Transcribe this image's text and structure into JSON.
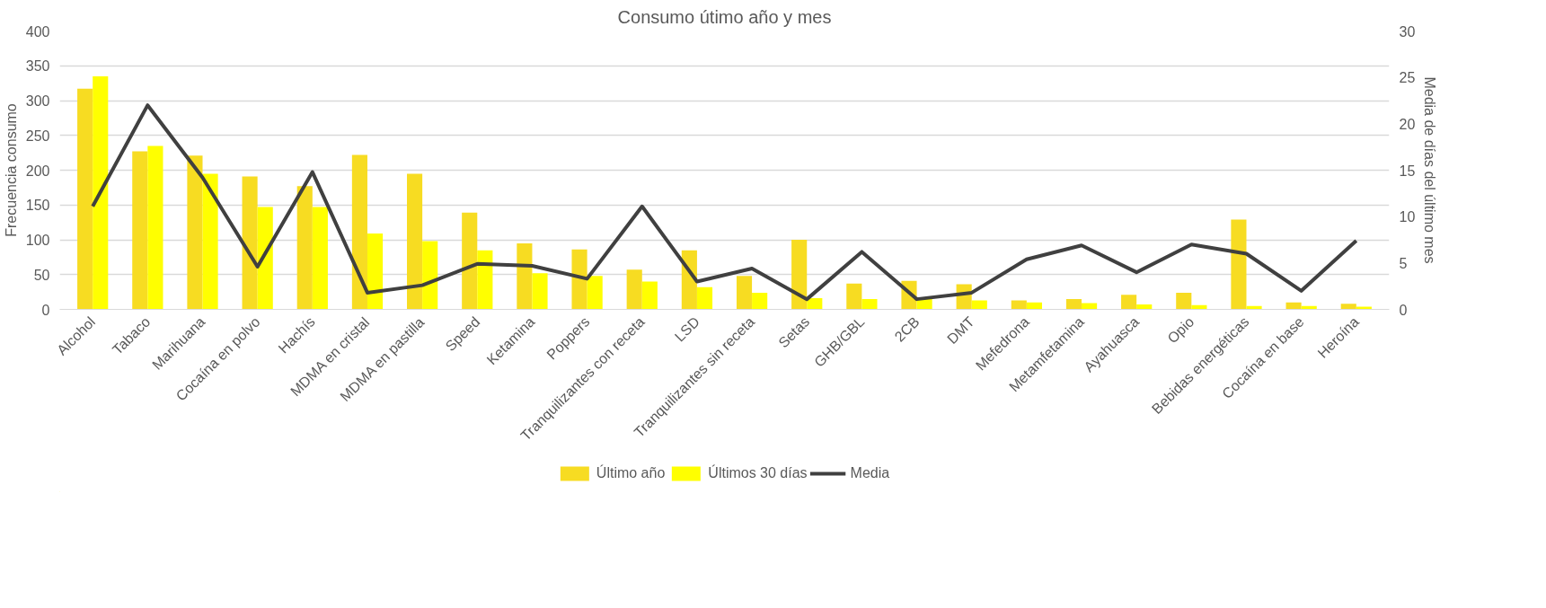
{
  "chart_data": {
    "type": "bar",
    "title": "Consumo útimo año y mes",
    "ylabel": "Frecuencia consumo",
    "y2label": "Media de días del último mes",
    "categories": [
      "Alcohol",
      "Tabaco",
      "Marihuana",
      "Cocaína en polvo",
      "Hachís",
      "MDMA en cristal",
      "MDMA en pastilla",
      "Speed",
      "Ketamina",
      "Poppers",
      "Tranquilizantes con receta",
      "LSD",
      "Tranquilizantes sin receta",
      "Setas",
      "GHB/GBL",
      "2CB",
      "DMT",
      "Mefedrona",
      "Metamfetamina",
      "Ayahuasca",
      "Opio",
      "Bebidas energéticas",
      "Cocaína en base",
      "Heroína"
    ],
    "series": [
      {
        "name": "Último año",
        "color": "#f7dc22",
        "values": [
          317,
          227,
          221,
          191,
          177,
          222,
          195,
          139,
          95,
          86,
          57,
          85,
          48,
          100,
          37,
          41,
          36,
          13,
          15,
          21,
          24,
          129,
          10,
          8
        ]
      },
      {
        "name": "Últimos 30 días",
        "color": "#ffff00",
        "values": [
          335,
          235,
          195,
          147,
          147,
          109,
          98,
          85,
          52,
          48,
          40,
          32,
          24,
          16,
          15,
          15,
          13,
          10,
          9,
          7,
          6,
          5,
          5,
          4
        ]
      },
      {
        "name": "Media",
        "type": "line",
        "axis": "y2",
        "color": "#404040",
        "values": [
          11.1,
          22.0,
          14.2,
          4.6,
          14.8,
          1.8,
          2.6,
          4.9,
          4.7,
          3.3,
          11.1,
          3.0,
          4.4,
          1.1,
          6.2,
          1.1,
          1.8,
          5.4,
          6.9,
          4.0,
          7.0,
          6.0,
          2.0,
          7.4
        ]
      }
    ],
    "ylim": [
      0,
      400
    ],
    "yticks": [
      0,
      50,
      100,
      150,
      200,
      250,
      300,
      350,
      400
    ],
    "y2lim": [
      0,
      30
    ],
    "y2ticks": [
      0,
      5,
      10,
      15,
      20,
      25,
      30
    ],
    "grid": "y",
    "legend": "bottom",
    "marker": "none",
    "line_style": "solid"
  }
}
